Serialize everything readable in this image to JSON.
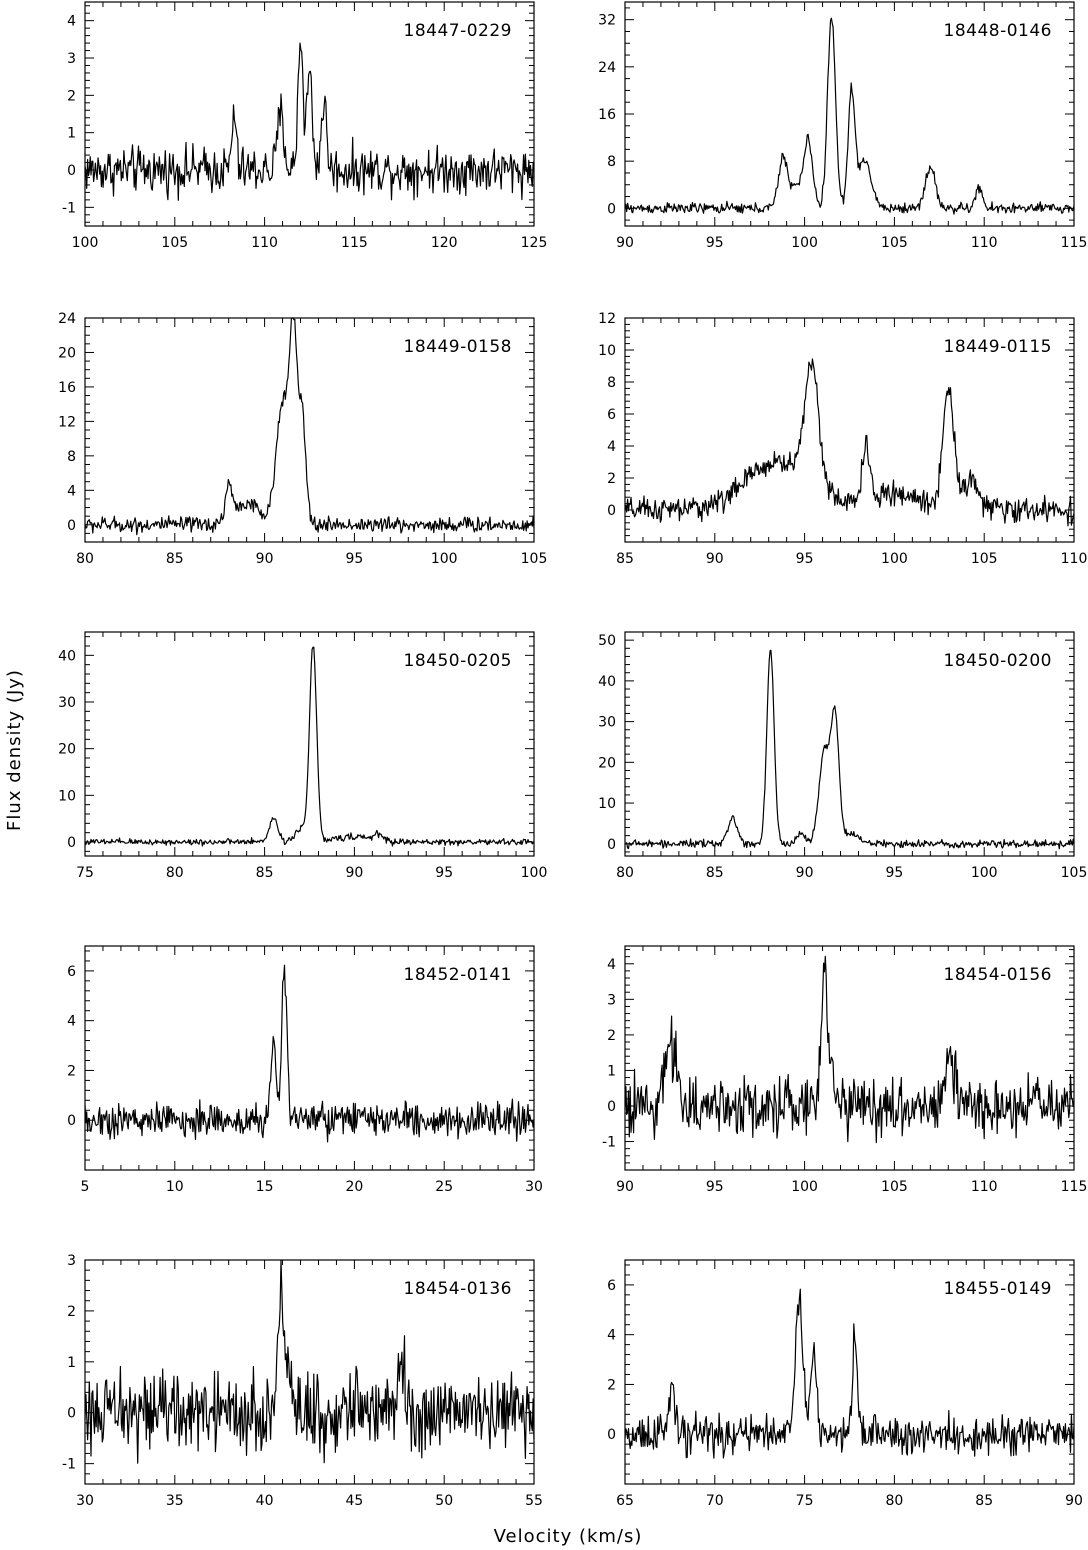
{
  "figure": {
    "xlabel": "Velocity (km/s)",
    "ylabel": "Flux density (Jy)"
  },
  "chart_data": [
    {
      "type": "line",
      "title": "18447-0229",
      "xlim": [
        100,
        125
      ],
      "ylim": [
        -1.5,
        4.5
      ],
      "xticks": [
        100,
        105,
        110,
        115,
        120,
        125
      ],
      "yticks": [
        -1,
        0,
        1,
        2,
        3,
        4
      ],
      "features": [
        {
          "center": 108.3,
          "peak": 1.5,
          "width": 0.12
        },
        {
          "center": 110.9,
          "peak": 1.5,
          "width": 0.18
        },
        {
          "center": 112.0,
          "peak": 3.5,
          "width": 0.14
        },
        {
          "center": 112.5,
          "peak": 2.6,
          "width": 0.15
        },
        {
          "center": 113.3,
          "peak": 1.8,
          "width": 0.15
        }
      ],
      "noise": 0.4
    },
    {
      "type": "line",
      "title": "18448-0146",
      "xlim": [
        90,
        115
      ],
      "ylim": [
        -3,
        35
      ],
      "xticks": [
        90,
        95,
        100,
        105,
        110,
        115
      ],
      "yticks": [
        0,
        8,
        16,
        24,
        32
      ],
      "features": [
        {
          "center": 98.8,
          "peak": 8.5,
          "width": 0.25
        },
        {
          "center": 99.5,
          "peak": 3.5,
          "width": 0.3
        },
        {
          "center": 100.2,
          "peak": 11.5,
          "width": 0.25
        },
        {
          "center": 101.5,
          "peak": 32.5,
          "width": 0.22
        },
        {
          "center": 102.6,
          "peak": 19,
          "width": 0.18
        },
        {
          "center": 103.3,
          "peak": 8,
          "width": 0.4
        },
        {
          "center": 107.0,
          "peak": 7,
          "width": 0.28
        },
        {
          "center": 109.7,
          "peak": 3.5,
          "width": 0.18
        }
      ],
      "noise": 0.6
    },
    {
      "type": "line",
      "title": "18449-0158",
      "xlim": [
        80,
        105
      ],
      "ylim": [
        -2,
        24
      ],
      "xticks": [
        80,
        85,
        90,
        95,
        100,
        105
      ],
      "yticks": [
        0,
        4,
        8,
        12,
        16,
        20,
        24
      ],
      "features": [
        {
          "center": 88.0,
          "peak": 4,
          "width": 0.18
        },
        {
          "center": 89.0,
          "peak": 2.5,
          "width": 0.7
        },
        {
          "center": 91.0,
          "peak": 14,
          "width": 0.35
        },
        {
          "center": 91.6,
          "peak": 21,
          "width": 0.22
        },
        {
          "center": 92.1,
          "peak": 12,
          "width": 0.2
        }
      ],
      "noise": 0.6
    },
    {
      "type": "line",
      "title": "18449-0115",
      "xlim": [
        85,
        110
      ],
      "ylim": [
        -2,
        12
      ],
      "xticks": [
        85,
        90,
        95,
        100,
        105,
        110
      ],
      "yticks": [
        0,
        2,
        4,
        6,
        8,
        10,
        12
      ],
      "features": [
        {
          "center": 93.5,
          "peak": 3,
          "width": 1.8
        },
        {
          "center": 95.4,
          "peak": 7.5,
          "width": 0.4
        },
        {
          "center": 98.4,
          "peak": 3.5,
          "width": 0.2
        },
        {
          "center": 100.0,
          "peak": 1,
          "width": 1.5
        },
        {
          "center": 103.0,
          "peak": 7.5,
          "width": 0.3
        },
        {
          "center": 104.2,
          "peak": 1.8,
          "width": 0.5
        }
      ],
      "noise": 0.5
    },
    {
      "type": "line",
      "title": "18450-0205",
      "xlim": [
        75,
        100
      ],
      "ylim": [
        -3,
        45
      ],
      "xticks": [
        75,
        80,
        85,
        90,
        95,
        100
      ],
      "yticks": [
        0,
        10,
        20,
        30,
        40
      ],
      "features": [
        {
          "center": 85.5,
          "peak": 5,
          "width": 0.25
        },
        {
          "center": 87.7,
          "peak": 42,
          "width": 0.2
        },
        {
          "center": 87.0,
          "peak": 3,
          "width": 0.3
        },
        {
          "center": 89.8,
          "peak": 1.2,
          "width": 0.8
        },
        {
          "center": 91.3,
          "peak": 1.5,
          "width": 0.3
        }
      ],
      "noise": 0.45
    },
    {
      "type": "line",
      "title": "18450-0200",
      "xlim": [
        80,
        105
      ],
      "ylim": [
        -3,
        52
      ],
      "xticks": [
        80,
        85,
        90,
        95,
        100,
        105
      ],
      "yticks": [
        0,
        10,
        20,
        30,
        40,
        50
      ],
      "features": [
        {
          "center": 86.0,
          "peak": 6.5,
          "width": 0.25
        },
        {
          "center": 88.1,
          "peak": 48,
          "width": 0.2
        },
        {
          "center": 89.8,
          "peak": 3,
          "width": 0.2
        },
        {
          "center": 91.1,
          "peak": 23,
          "width": 0.3
        },
        {
          "center": 91.7,
          "peak": 30,
          "width": 0.22
        },
        {
          "center": 92.6,
          "peak": 2.5,
          "width": 0.4
        }
      ],
      "noise": 0.6
    },
    {
      "type": "line",
      "title": "18452-0141",
      "xlim": [
        5,
        30
      ],
      "ylim": [
        -2,
        7
      ],
      "xticks": [
        5,
        10,
        15,
        20,
        25,
        30
      ],
      "yticks": [
        0,
        2,
        4,
        6
      ],
      "features": [
        {
          "center": 15.5,
          "peak": 3.0,
          "width": 0.15
        },
        {
          "center": 16.1,
          "peak": 6.2,
          "width": 0.14
        }
      ],
      "noise": 0.45
    },
    {
      "type": "line",
      "title": "18454-0156",
      "xlim": [
        90,
        115
      ],
      "ylim": [
        -1.8,
        4.5
      ],
      "xticks": [
        90,
        95,
        100,
        105,
        110,
        115
      ],
      "yticks": [
        -1,
        0,
        1,
        2,
        3,
        4
      ],
      "features": [
        {
          "center": 92.6,
          "peak": 1.8,
          "width": 0.3
        },
        {
          "center": 101.1,
          "peak": 3.9,
          "width": 0.16
        },
        {
          "center": 101.6,
          "peak": 1.0,
          "width": 0.25
        },
        {
          "center": 108.0,
          "peak": 1.3,
          "width": 0.25
        }
      ],
      "noise": 0.55
    },
    {
      "type": "line",
      "title": "18454-0136",
      "xlim": [
        30,
        55
      ],
      "ylim": [
        -1.4,
        3
      ],
      "xticks": [
        30,
        35,
        40,
        45,
        50,
        55
      ],
      "yticks": [
        -1,
        0,
        1,
        2,
        3
      ],
      "features": [
        {
          "center": 40.9,
          "peak": 2.4,
          "width": 0.14
        },
        {
          "center": 41.3,
          "peak": 0.9,
          "width": 0.2
        },
        {
          "center": 47.6,
          "peak": 1.1,
          "width": 0.2
        }
      ],
      "noise": 0.5
    },
    {
      "type": "line",
      "title": "18455-0149",
      "xlim": [
        65,
        90
      ],
      "ylim": [
        -2,
        7
      ],
      "xticks": [
        65,
        70,
        75,
        80,
        85,
        90
      ],
      "yticks": [
        0,
        2,
        4,
        6
      ],
      "features": [
        {
          "center": 67.6,
          "peak": 1.8,
          "width": 0.15
        },
        {
          "center": 74.7,
          "peak": 5.3,
          "width": 0.2
        },
        {
          "center": 75.5,
          "peak": 3.3,
          "width": 0.17
        },
        {
          "center": 77.8,
          "peak": 4.0,
          "width": 0.13
        }
      ],
      "noise": 0.5
    }
  ]
}
